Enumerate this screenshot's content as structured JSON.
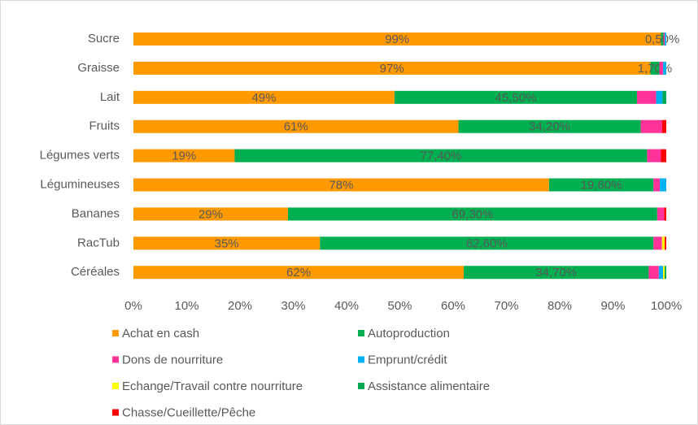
{
  "chart_data": {
    "type": "stacked_barh",
    "categories": [
      "Sucre",
      "Graisse",
      "Lait",
      "Fruits",
      "Légumes verts",
      "Légumineuses",
      "Bananes",
      "RacTub",
      "Céréales"
    ],
    "series": [
      {
        "name": "Achat en cash",
        "color": "#ff9900",
        "values": [
          99,
          97,
          49,
          61,
          19,
          78,
          29,
          35,
          62
        ],
        "value_labels": [
          "99%",
          "97%",
          "49%",
          "61%",
          "19%",
          "78%",
          "29%",
          "35%",
          "62%"
        ]
      },
      {
        "name": "Autoproduction",
        "color": "#00b050",
        "values": [
          0.5,
          1.7,
          45.5,
          34.2,
          77.4,
          19.6,
          69.3,
          62.6,
          34.7
        ],
        "value_labels": [
          "0,50%",
          "1,70%",
          "45,50%",
          "34,20%",
          "77,40%",
          "19,60%",
          "69,30%",
          "62,60%",
          "34,70%"
        ]
      },
      {
        "name": "Dons de nourriture",
        "color": "#ff3399",
        "values": [
          0.2,
          0.7,
          3.6,
          4,
          2.6,
          1.2,
          1.3,
          1.6,
          1.9
        ]
      },
      {
        "name": "Emprunt/crédit",
        "color": "#00b0f0",
        "values": [
          0.3,
          0.6,
          1.2,
          0,
          0,
          1.2,
          0,
          0,
          0.8
        ]
      },
      {
        "name": "Echange/Travail contre nourriture",
        "color": "#ffff00",
        "values": [
          0,
          0,
          0,
          0,
          0,
          0,
          0,
          0.5,
          0.3
        ]
      },
      {
        "name": "Assistance alimentaire",
        "color": "#00a651",
        "values": [
          0,
          0,
          0.7,
          0,
          0,
          0,
          0,
          0,
          0.3
        ]
      },
      {
        "name": "Chasse/Cueillette/Pêche",
        "color": "#ff0000",
        "values": [
          0,
          0,
          0,
          0.8,
          1,
          0,
          0.4,
          0.3,
          0
        ]
      }
    ],
    "xlim": [
      0,
      100
    ],
    "xticks": [
      {
        "value": 0,
        "label": "0%"
      },
      {
        "value": 10,
        "label": "10%"
      },
      {
        "value": 20,
        "label": "20%"
      },
      {
        "value": 30,
        "label": "30%"
      },
      {
        "value": 40,
        "label": "40%"
      },
      {
        "value": 50,
        "label": "50%"
      },
      {
        "value": 60,
        "label": "60%"
      },
      {
        "value": 70,
        "label": "70%"
      },
      {
        "value": 80,
        "label": "80%"
      },
      {
        "value": 90,
        "label": "90%"
      },
      {
        "value": 100,
        "label": "100%"
      }
    ]
  }
}
